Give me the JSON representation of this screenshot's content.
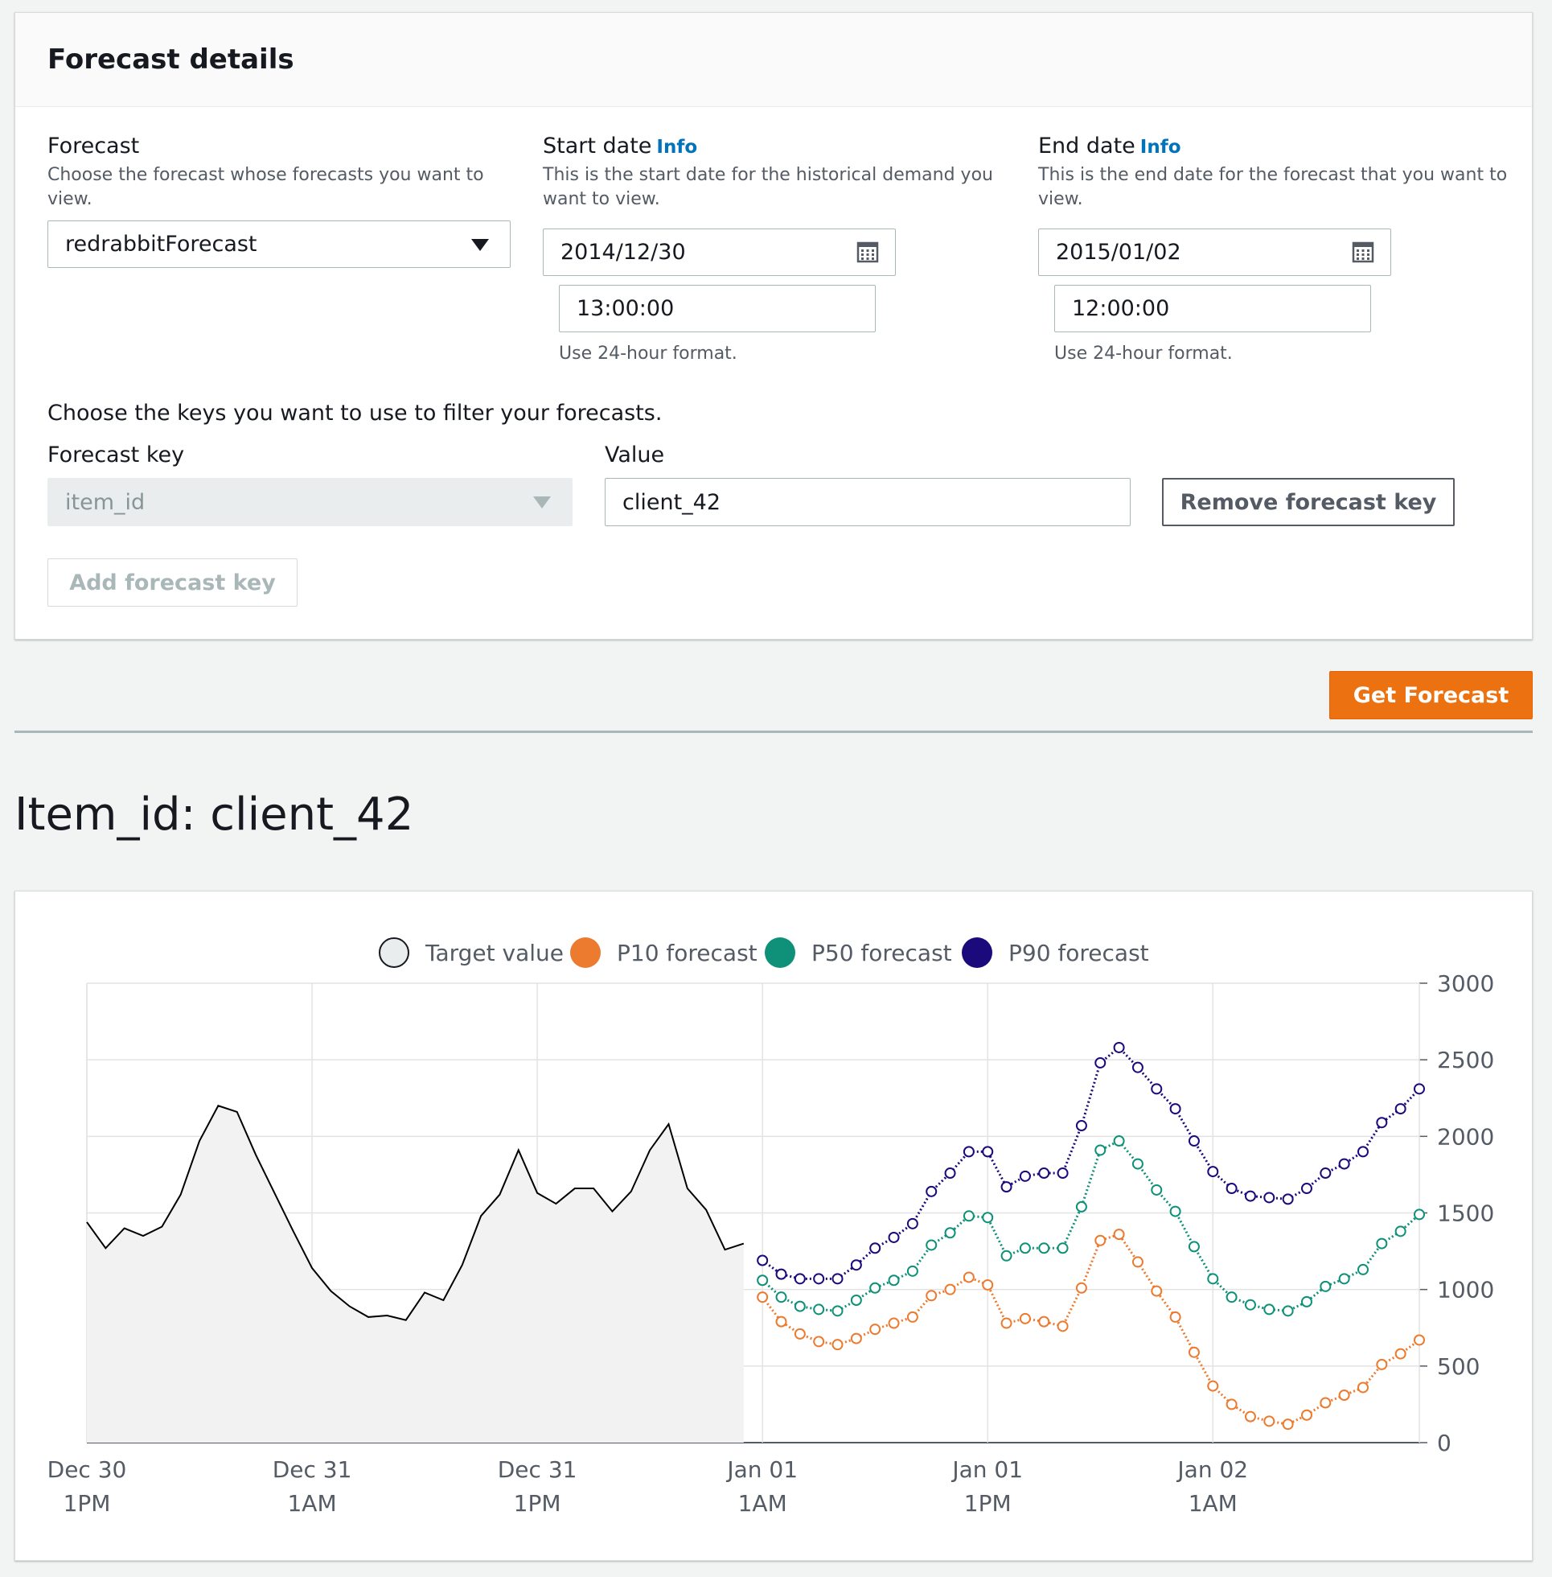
{
  "details": {
    "title": "Forecast details",
    "forecast": {
      "label": "Forecast",
      "description": "Choose the forecast whose forecasts you want to view.",
      "value": "redrabbitForecast"
    },
    "start_date": {
      "label": "Start date",
      "info": "Info",
      "description": "This is the start date for the historical demand you want to view.",
      "date": "2014/12/30",
      "time": "13:00:00",
      "hint": "Use 24-hour format."
    },
    "end_date": {
      "label": "End date",
      "info": "Info",
      "description": "This is the end date for the forecast that you want to view.",
      "date": "2015/01/02",
      "time": "12:00:00",
      "hint": "Use 24-hour format."
    },
    "keys_intro": "Choose the keys you want to use to filter your forecasts.",
    "forecast_key": {
      "label": "Forecast key",
      "value": "item_id"
    },
    "value_field": {
      "label": "Value",
      "value": "client_42"
    },
    "remove_key_label": "Remove forecast key",
    "add_key_label": "Add forecast key"
  },
  "get_forecast_label": "Get Forecast",
  "item_title": "Item_id: client_42",
  "colors": {
    "target": "#000000",
    "p10": "#ec7a2f",
    "p50": "#0e9178",
    "p90": "#1a0a7c",
    "accent_button": "#ec7211",
    "info_link": "#0073bb"
  },
  "chart_data": {
    "type": "line",
    "legend": [
      "Target value",
      "P10 forecast",
      "P50 forecast",
      "P90 forecast"
    ],
    "legend_position": "top-center",
    "x_ticks": [
      {
        "line1": "Dec 30",
        "line2": "1PM"
      },
      {
        "line1": "Dec 31",
        "line2": "1AM"
      },
      {
        "line1": "Dec 31",
        "line2": "1PM"
      },
      {
        "line1": "Jan 01",
        "line2": "1AM"
      },
      {
        "line1": "Jan 01",
        "line2": "1PM"
      },
      {
        "line1": "Jan 02",
        "line2": "1AM"
      }
    ],
    "x_unit_note": "hourly points, x = hours since Dec 30 1PM",
    "ylim": [
      0,
      3000
    ],
    "y_ticks": [
      0,
      500,
      1000,
      1500,
      2000,
      2500,
      3000
    ],
    "y_axis_side": "right",
    "grid": true,
    "series": [
      {
        "name": "Target value",
        "x": [
          0,
          1,
          2,
          3,
          4,
          5,
          6,
          7,
          8,
          9,
          10,
          11,
          12,
          13,
          14,
          15,
          16,
          17,
          18,
          19,
          20,
          21,
          22,
          23,
          24,
          25,
          26,
          27,
          28,
          29,
          30,
          31,
          32,
          33,
          34,
          35
        ],
        "values": [
          1440,
          1270,
          1400,
          1350,
          1410,
          1620,
          1970,
          2200,
          2160,
          1880,
          1630,
          1380,
          1140,
          990,
          890,
          820,
          830,
          800,
          980,
          930,
          1160,
          1480,
          1620,
          1910,
          1630,
          1560,
          1660,
          1660,
          1510,
          1640,
          1910,
          2080,
          1660,
          1520,
          1260,
          1300
        ]
      },
      {
        "name": "P10 forecast",
        "x": [
          36,
          37,
          38,
          39,
          40,
          41,
          42,
          43,
          44,
          45,
          46,
          47,
          48,
          49,
          50,
          51,
          52,
          53,
          54,
          55,
          56,
          57,
          58,
          59,
          60,
          61,
          62,
          63,
          64,
          65,
          66,
          67,
          68,
          69,
          70,
          71
        ],
        "values": [
          950,
          790,
          710,
          660,
          640,
          680,
          740,
          780,
          820,
          960,
          1000,
          1080,
          1030,
          780,
          810,
          790,
          760,
          1010,
          1320,
          1360,
          1180,
          990,
          820,
          590,
          370,
          250,
          170,
          140,
          120,
          180,
          260,
          310,
          360,
          510,
          580,
          670
        ]
      },
      {
        "name": "P50 forecast",
        "x": [
          36,
          37,
          38,
          39,
          40,
          41,
          42,
          43,
          44,
          45,
          46,
          47,
          48,
          49,
          50,
          51,
          52,
          53,
          54,
          55,
          56,
          57,
          58,
          59,
          60,
          61,
          62,
          63,
          64,
          65,
          66,
          67,
          68,
          69,
          70,
          71
        ],
        "values": [
          1060,
          950,
          890,
          870,
          860,
          930,
          1010,
          1060,
          1120,
          1290,
          1370,
          1480,
          1470,
          1220,
          1270,
          1270,
          1270,
          1540,
          1910,
          1970,
          1820,
          1650,
          1510,
          1280,
          1070,
          950,
          900,
          870,
          860,
          920,
          1020,
          1070,
          1130,
          1300,
          1380,
          1490
        ]
      },
      {
        "name": "P90 forecast",
        "x": [
          36,
          37,
          38,
          39,
          40,
          41,
          42,
          43,
          44,
          45,
          46,
          47,
          48,
          49,
          50,
          51,
          52,
          53,
          54,
          55,
          56,
          57,
          58,
          59,
          60,
          61,
          62,
          63,
          64,
          65,
          66,
          67,
          68,
          69,
          70,
          71
        ],
        "values": [
          1190,
          1100,
          1070,
          1070,
          1070,
          1160,
          1270,
          1340,
          1430,
          1640,
          1760,
          1900,
          1900,
          1670,
          1740,
          1760,
          1760,
          2070,
          2480,
          2580,
          2450,
          2310,
          2180,
          1970,
          1770,
          1660,
          1610,
          1600,
          1590,
          1660,
          1760,
          1820,
          1900,
          2090,
          2180,
          2310
        ]
      }
    ]
  }
}
